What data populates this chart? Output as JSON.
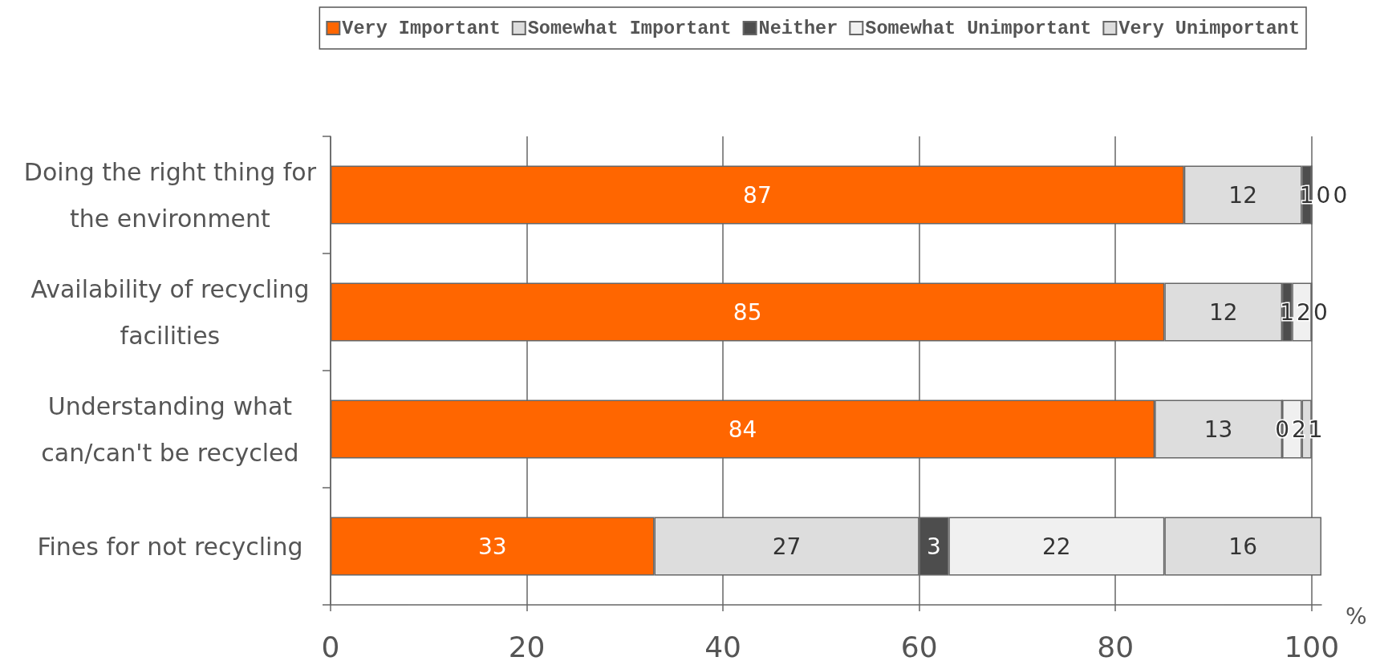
{
  "chart_data": {
    "type": "bar",
    "orientation": "horizontal",
    "stacked": true,
    "categories": [
      "Doing the right thing for the environment",
      "Availability of recycling facilities",
      "Understanding what can/can't be recycled",
      "Fines for not recycling"
    ],
    "series": [
      {
        "name": "Very Important",
        "color": "#ff6600",
        "values": [
          87,
          85,
          84,
          33
        ]
      },
      {
        "name": "Somewhat Important",
        "color": "#dddddd",
        "values": [
          12,
          12,
          13,
          27
        ]
      },
      {
        "name": "Neither",
        "color": "#4d4d4d",
        "values": [
          1,
          1,
          0,
          3
        ]
      },
      {
        "name": "Somewhat Unimportant",
        "color": "#f0f0f0",
        "values": [
          0,
          2,
          2,
          22
        ]
      },
      {
        "name": "Very Unimportant",
        "color": "#dddddd",
        "values": [
          0,
          0,
          1,
          16
        ]
      }
    ],
    "xlabel": "%",
    "xlim": [
      0,
      101
    ],
    "xticks": [
      0,
      20,
      40,
      60,
      80,
      100
    ],
    "grid": "x",
    "legend": "top right",
    "data_labels": true
  }
}
